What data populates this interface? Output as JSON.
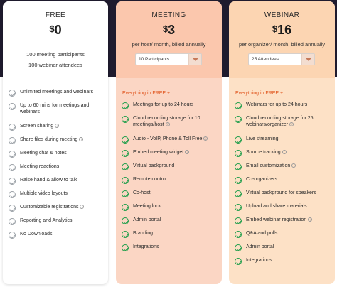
{
  "free": {
    "name": "FREE",
    "currency": "$",
    "price": "0",
    "lines": [
      "100 meeting participants",
      "100 webinar attendees"
    ],
    "features": [
      {
        "label": "Unlimited meetings and webinars",
        "two": false,
        "info": false
      },
      {
        "label": "Up to 60 mins for meetings and webinars",
        "two": true,
        "info": false
      },
      {
        "label": "Screen sharing",
        "two": false,
        "info": true
      },
      {
        "label": "Share files during meeting",
        "two": false,
        "info": true
      },
      {
        "label": "Meeting chat & notes",
        "two": false,
        "info": false
      },
      {
        "label": "Meeting reactions",
        "two": false,
        "info": false
      },
      {
        "label": "Raise hand & allow to talk",
        "two": false,
        "info": false
      },
      {
        "label": "Multiple video layouts",
        "two": false,
        "info": false
      },
      {
        "label": "Customizable registrations",
        "two": false,
        "info": true
      },
      {
        "label": "Reporting and Analytics",
        "two": false,
        "info": false
      },
      {
        "label": "No Downloads",
        "two": false,
        "info": false
      }
    ]
  },
  "meeting": {
    "name": "MEETING",
    "currency": "$",
    "price": "3",
    "sub": "per host/ month, billed annually",
    "select_value": "10 Participants",
    "everything": "Everything in FREE +",
    "features": [
      {
        "label": "Meetings for up to 24 hours",
        "two": false,
        "info": false
      },
      {
        "label": "Cloud recording storage for 10 meetings/host",
        "two": true,
        "info": true
      },
      {
        "label": "Audio - VoIP, Phone & Toll Free",
        "two": false,
        "info": true
      },
      {
        "label": "Embed meeting widget",
        "two": false,
        "info": true
      },
      {
        "label": "Virtual background",
        "two": false,
        "info": false
      },
      {
        "label": "Remote control",
        "two": false,
        "info": false
      },
      {
        "label": "Co-host",
        "two": false,
        "info": false
      },
      {
        "label": "Meeting lock",
        "two": false,
        "info": false
      },
      {
        "label": "Admin portal",
        "two": false,
        "info": false
      },
      {
        "label": "Branding",
        "two": false,
        "info": false
      },
      {
        "label": "Integrations",
        "two": false,
        "info": false
      }
    ]
  },
  "webinar": {
    "name": "WEBINAR",
    "currency": "$",
    "price": "16",
    "sub": "per organizer/ month, billed annually",
    "select_value": "25 Attendees",
    "everything": "Everything in FREE +",
    "features": [
      {
        "label": "Webinars for up to 24 hours",
        "two": false,
        "info": false
      },
      {
        "label": "Cloud recording storage for 25 webinars/organizer",
        "two": true,
        "info": true
      },
      {
        "label": "Live streaming",
        "two": false,
        "info": false
      },
      {
        "label": "Source tracking",
        "two": false,
        "info": true
      },
      {
        "label": "Email customization",
        "two": false,
        "info": true
      },
      {
        "label": "Co-organizers",
        "two": false,
        "info": false
      },
      {
        "label": "Virtual background for speakers",
        "two": false,
        "info": false
      },
      {
        "label": "Upload and share materials",
        "two": false,
        "info": false
      },
      {
        "label": "Embed webinar registration",
        "two": false,
        "info": true
      },
      {
        "label": "Q&A and polls",
        "two": false,
        "info": false
      },
      {
        "label": "Admin portal",
        "two": false,
        "info": false
      },
      {
        "label": "Integrations",
        "two": false,
        "info": false
      }
    ]
  }
}
